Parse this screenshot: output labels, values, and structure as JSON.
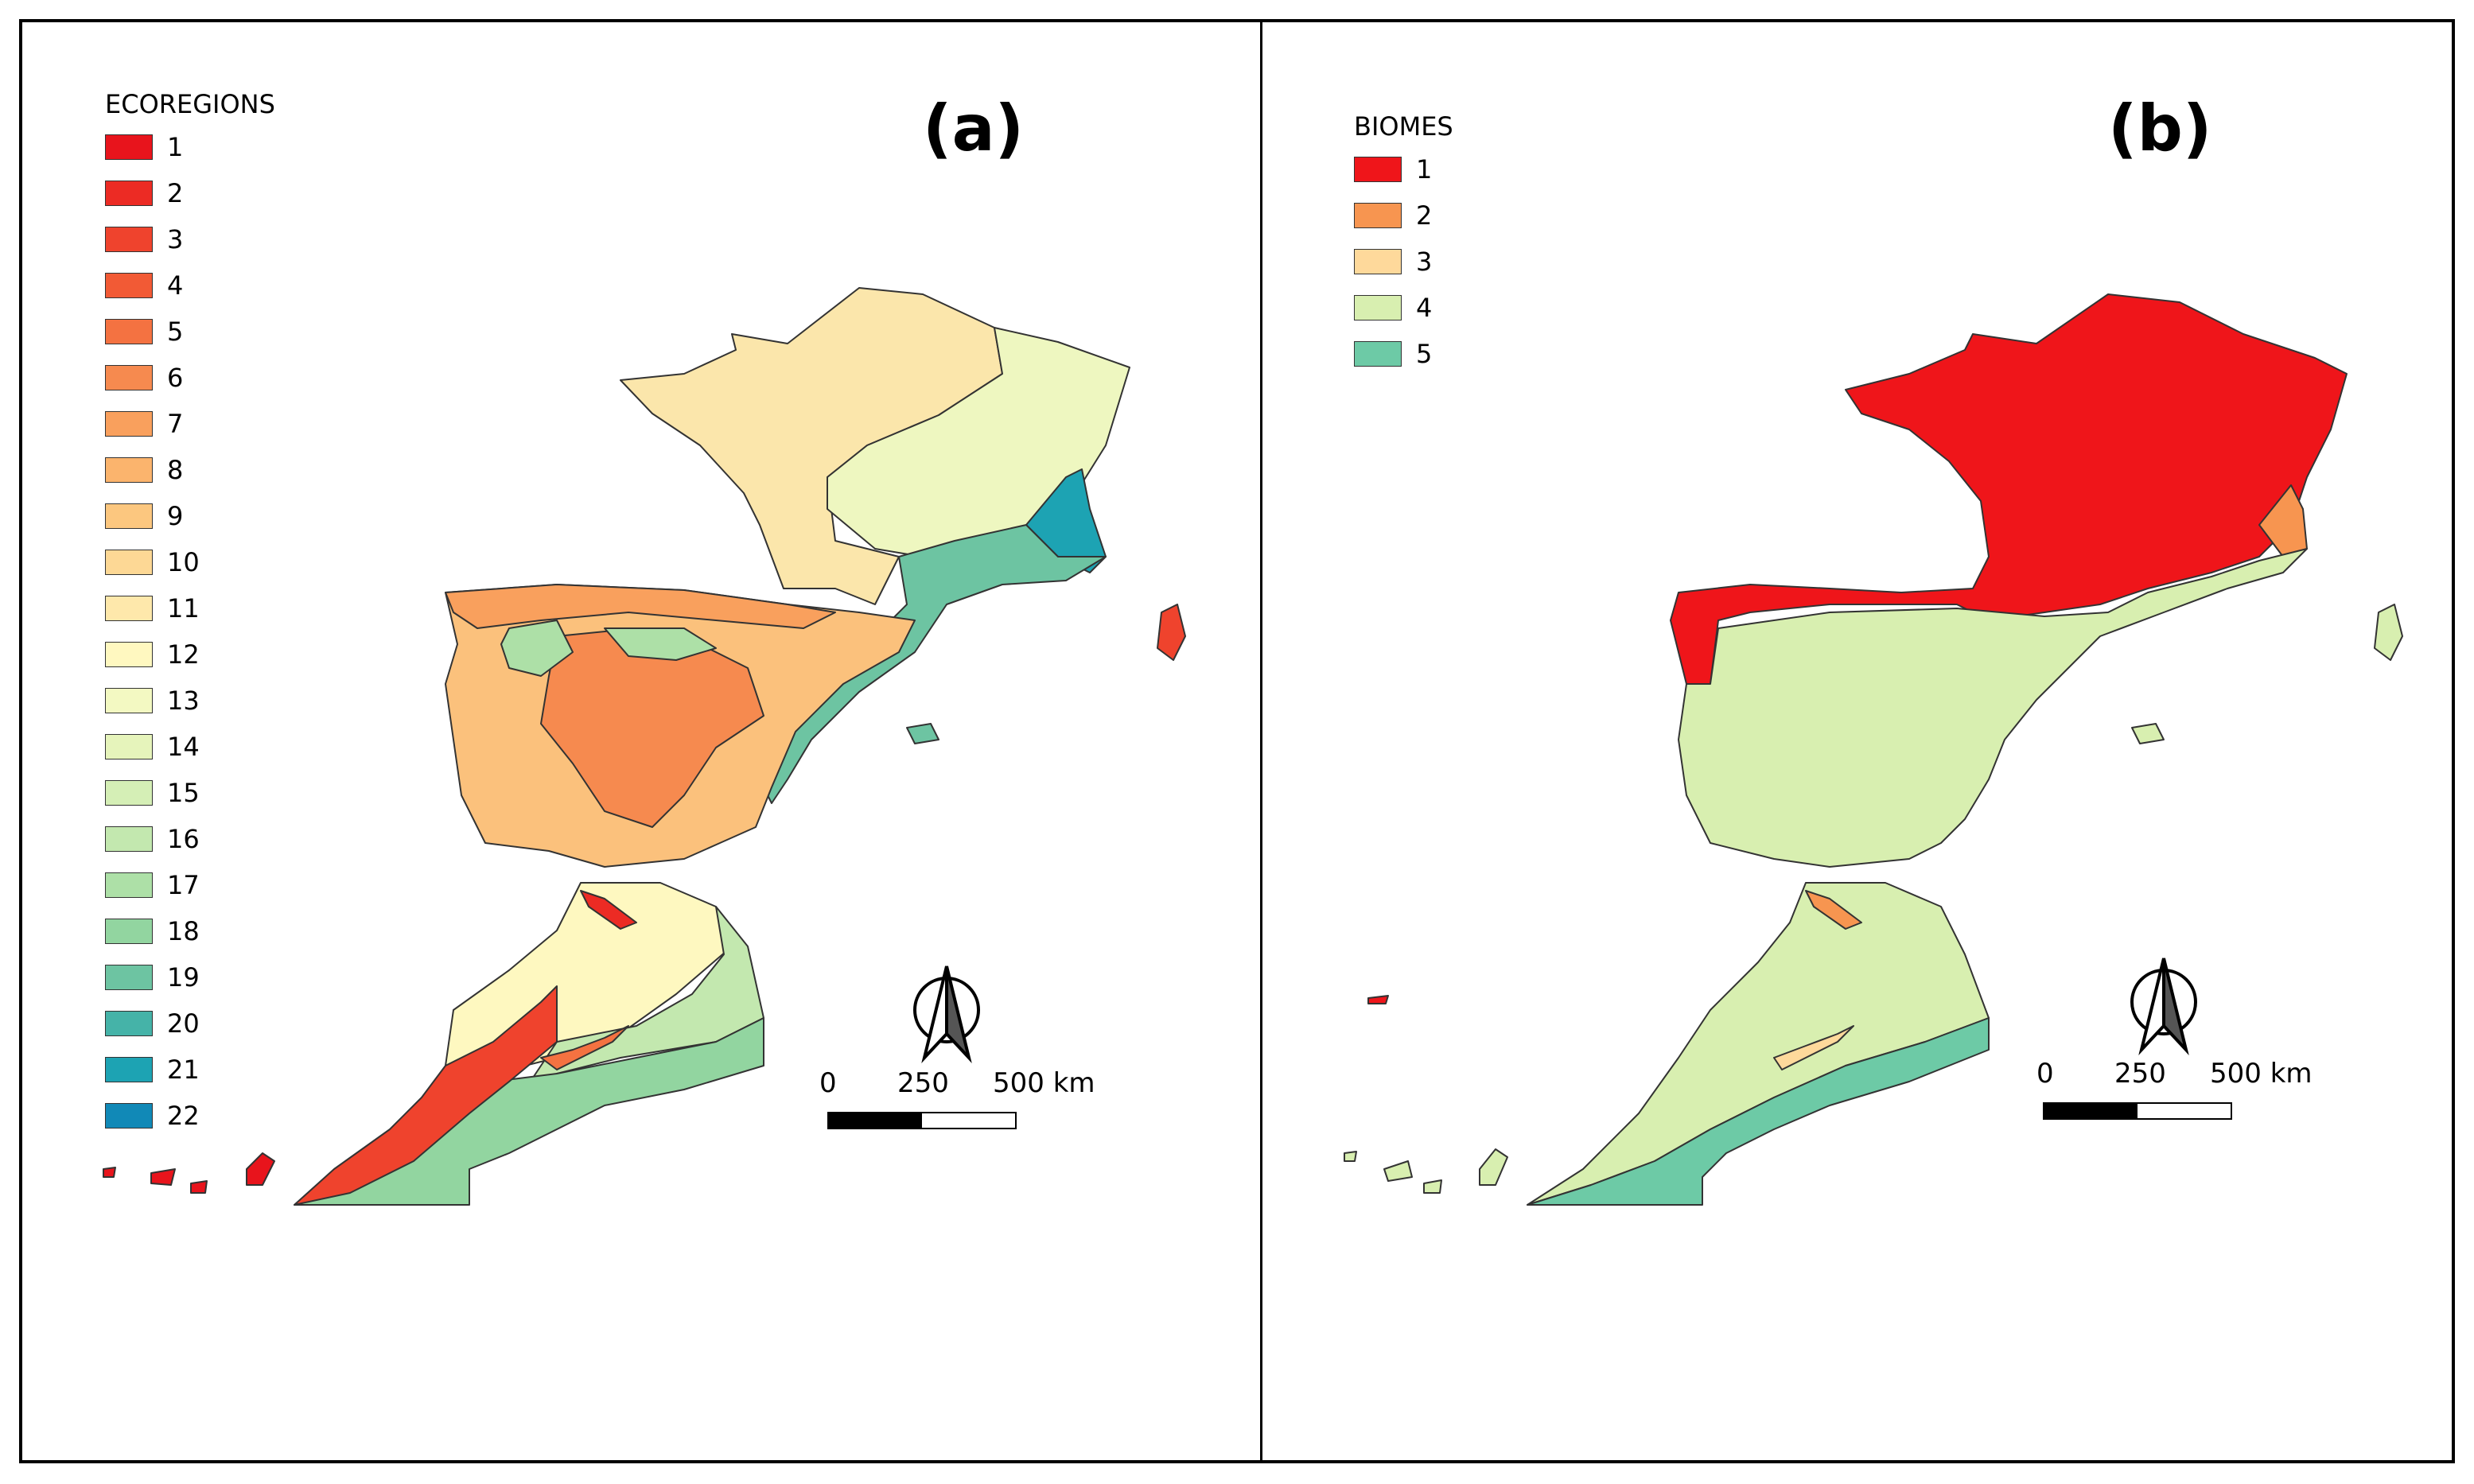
{
  "panel_a": {
    "label": "(a)",
    "legend_title": "ECOREGIONS",
    "legend": [
      {
        "label": "1",
        "color": "#e8141c"
      },
      {
        "label": "2",
        "color": "#ec2b24"
      },
      {
        "label": "3",
        "color": "#ef432d"
      },
      {
        "label": "4",
        "color": "#f25a35"
      },
      {
        "label": "5",
        "color": "#f47241"
      },
      {
        "label": "6",
        "color": "#f68a4f"
      },
      {
        "label": "7",
        "color": "#f9a05d"
      },
      {
        "label": "8",
        "color": "#fbb46d"
      },
      {
        "label": "9",
        "color": "#fcc77f"
      },
      {
        "label": "10",
        "color": "#fdd895"
      },
      {
        "label": "11",
        "color": "#fee8ab"
      },
      {
        "label": "12",
        "color": "#fff8c0"
      },
      {
        "label": "13",
        "color": "#f3f9c2"
      },
      {
        "label": "14",
        "color": "#e6f4bb"
      },
      {
        "label": "15",
        "color": "#d5efb6"
      },
      {
        "label": "16",
        "color": "#c3e8af"
      },
      {
        "label": "17",
        "color": "#ade0a7"
      },
      {
        "label": "18",
        "color": "#92d5a0"
      },
      {
        "label": "19",
        "color": "#6dc4a2"
      },
      {
        "label": "20",
        "color": "#45b3a8"
      },
      {
        "label": "21",
        "color": "#1da3b3"
      },
      {
        "label": "22",
        "color": "#1189b7"
      }
    ],
    "scale": {
      "tick0": "0",
      "tick1": "250",
      "tick2": "500 km"
    }
  },
  "panel_b": {
    "label": "(b)",
    "legend_title": "BIOMES",
    "legend": [
      {
        "label": "1",
        "color": "#ef151a"
      },
      {
        "label": "2",
        "color": "#f79550"
      },
      {
        "label": "3",
        "color": "#fed99b"
      },
      {
        "label": "4",
        "color": "#d8efb0"
      },
      {
        "label": "5",
        "color": "#6dcaa6"
      }
    ],
    "scale": {
      "tick0": "0",
      "tick1": "250",
      "tick2": "500 km"
    }
  },
  "icons": {
    "north_arrow": "north-arrow-icon"
  }
}
